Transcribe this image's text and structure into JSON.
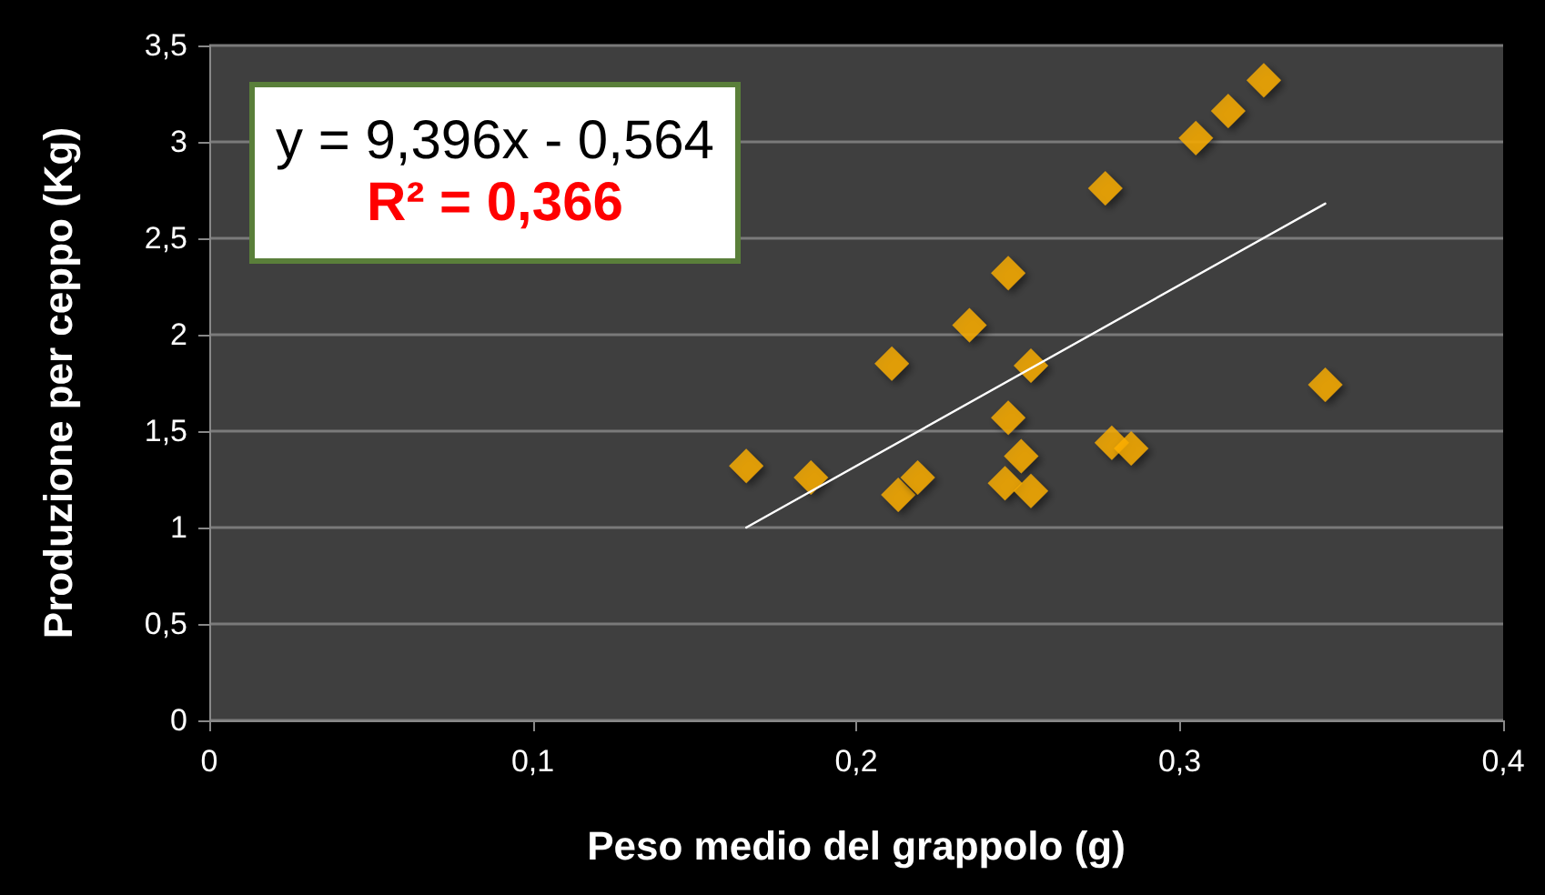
{
  "chart_data": {
    "type": "scatter",
    "xlabel": "Peso medio del grappolo (g)",
    "ylabel": "Produzione per ceppo (Kg)",
    "annotations": [
      "y = 9,396x - 0,564",
      "R² = 0,366"
    ],
    "series": [
      {
        "color": "#ffb000",
        "x": [
          0.166,
          0.186,
          0.213,
          0.219,
          0.211,
          0.235,
          0.247,
          0.247,
          0.251,
          0.246,
          0.254,
          0.254,
          0.277,
          0.279,
          0.285,
          0.305,
          0.315,
          0.326,
          0.345
        ],
        "values": [
          1.32,
          1.26,
          1.17,
          1.26,
          1.85,
          2.05,
          2.32,
          1.57,
          1.37,
          1.23,
          1.19,
          1.84,
          2.76,
          1.44,
          1.41,
          3.02,
          3.16,
          3.32,
          1.74
        ]
      },
      {
        "type": "line",
        "color": "#ffffff",
        "marker": "none",
        "x": [
          0.166,
          0.345
        ],
        "values": [
          1.0,
          2.68
        ]
      }
    ],
    "xlim": [
      0,
      0.4
    ],
    "xticks": [
      0,
      {
        "value": 0.1,
        "label": "0,1"
      },
      {
        "value": 0.2,
        "label": "0,2"
      },
      {
        "value": 0.3,
        "label": "0,3"
      },
      {
        "value": 0.4,
        "label": "0,4"
      }
    ],
    "ylim": [
      0,
      3.5
    ],
    "yticks": [
      0,
      {
        "value": 0.5,
        "label": "0,5"
      },
      1,
      {
        "value": 1.5,
        "label": "1,5"
      },
      2,
      {
        "value": 2.5,
        "label": "2,5"
      },
      3,
      {
        "value": 3.5,
        "label": "3,5"
      }
    ],
    "grid": "y",
    "marker": "diamond"
  }
}
